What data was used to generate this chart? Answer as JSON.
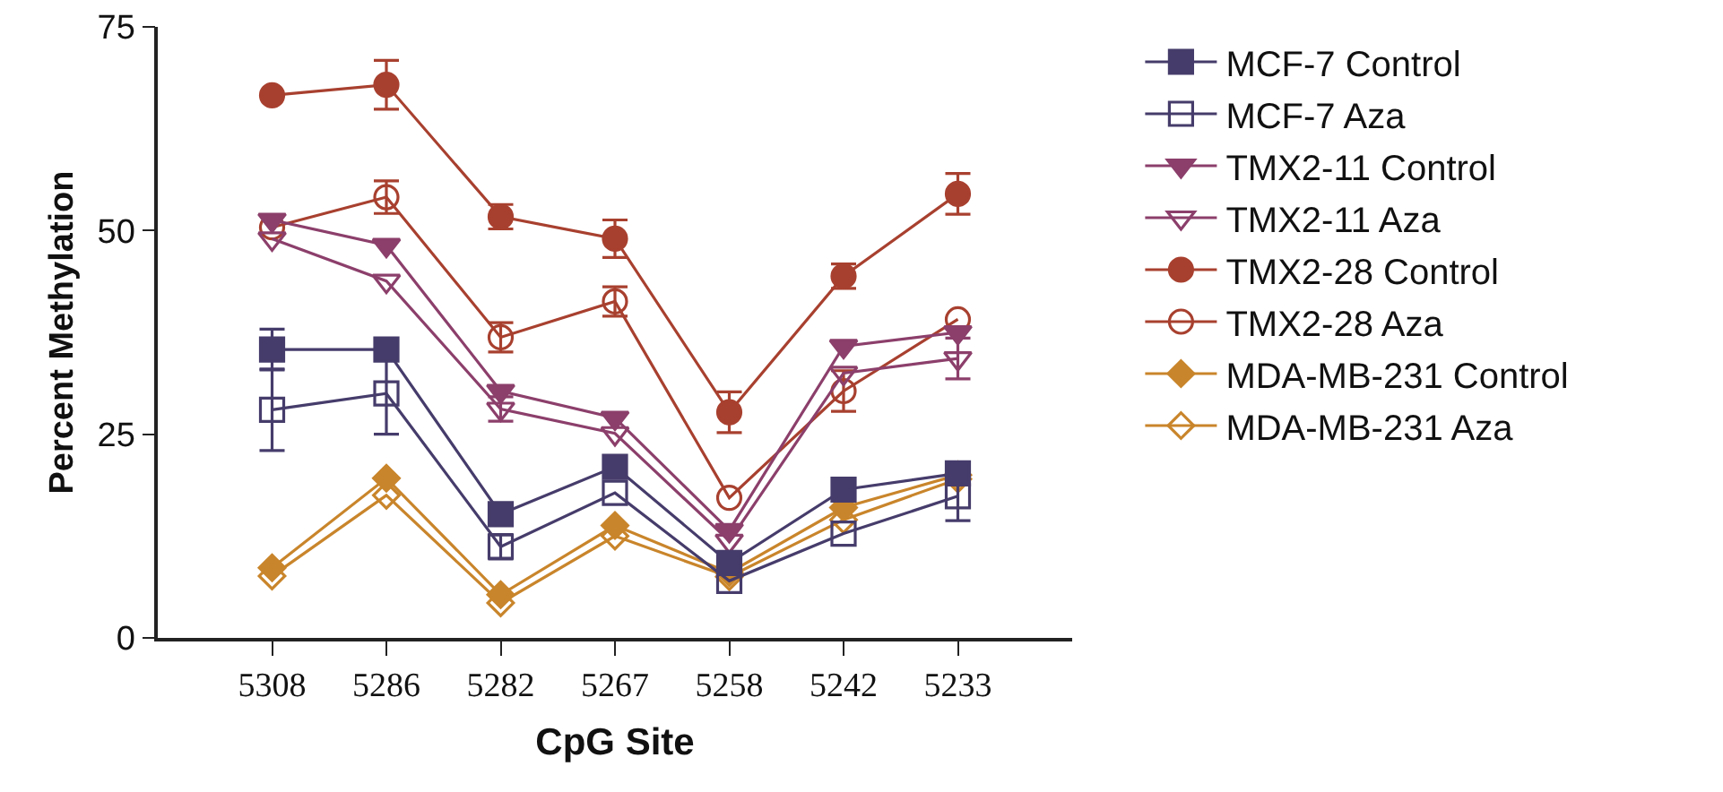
{
  "chart_data": {
    "type": "line",
    "xlabel": "CpG Site",
    "ylabel": "Percent Methylation",
    "categories": [
      "5308",
      "5286",
      "5282",
      "5267",
      "5258",
      "5242",
      "5233"
    ],
    "ylim": [
      0,
      75
    ],
    "yticks": [
      0,
      25,
      50,
      75
    ],
    "grid": false,
    "legend": "right",
    "series": [
      {
        "name": "MCF-7 Control",
        "color": "#463c6b",
        "marker": "square",
        "values": [
          35.4,
          35.4,
          15.2,
          21,
          9.2,
          18.2,
          20.2
        ],
        "errors": [
          2.5,
          null,
          null,
          null,
          null,
          null,
          null
        ]
      },
      {
        "name": "MCF-7 Aza",
        "color": "#463c6b",
        "marker": "square-open",
        "values": [
          28,
          30,
          11.2,
          17.8,
          7,
          12.8,
          17.4
        ],
        "errors": [
          5,
          5,
          1.5,
          null,
          null,
          null,
          3
        ]
      },
      {
        "name": "TMX2-11 Control",
        "color": "#8c3f6b",
        "marker": "triangle",
        "values": [
          51.3,
          48.2,
          30.3,
          27,
          13.2,
          35.8,
          37.5
        ]
      },
      {
        "name": "TMX2-11 Aza",
        "color": "#8c3f6b",
        "marker": "triangle-open",
        "values": [
          49,
          43.8,
          28.1,
          25.1,
          11.9,
          32.5,
          34.3
        ],
        "errors": [
          null,
          null,
          1.5,
          null,
          null,
          null,
          2.5
        ]
      },
      {
        "name": "TMX2-28 Control",
        "color": "#a8402f",
        "marker": "circle",
        "values": [
          66.6,
          67.9,
          51.7,
          49,
          27.7,
          44.4,
          54.5
        ],
        "errors": [
          null,
          3,
          1.5,
          2.3,
          2.5,
          1.5,
          2.5
        ]
      },
      {
        "name": "TMX2-28 Aza",
        "color": "#a8402f",
        "marker": "circle-open",
        "values": [
          50.4,
          54.1,
          36.9,
          41.3,
          17.2,
          30.3,
          39.1
        ],
        "errors": [
          null,
          2,
          1.8,
          1.8,
          null,
          2.5,
          null
        ]
      },
      {
        "name": "MDA-MB-231 Control",
        "color": "#c9852b",
        "marker": "diamond",
        "values": [
          8.6,
          19.6,
          5.3,
          13.8,
          8,
          16,
          20
        ]
      },
      {
        "name": "MDA-MB-231 Aza",
        "color": "#c9852b",
        "marker": "diamond-open",
        "values": [
          7.6,
          17.5,
          4.3,
          12.5,
          7.5,
          14.5,
          19.5
        ]
      }
    ]
  }
}
